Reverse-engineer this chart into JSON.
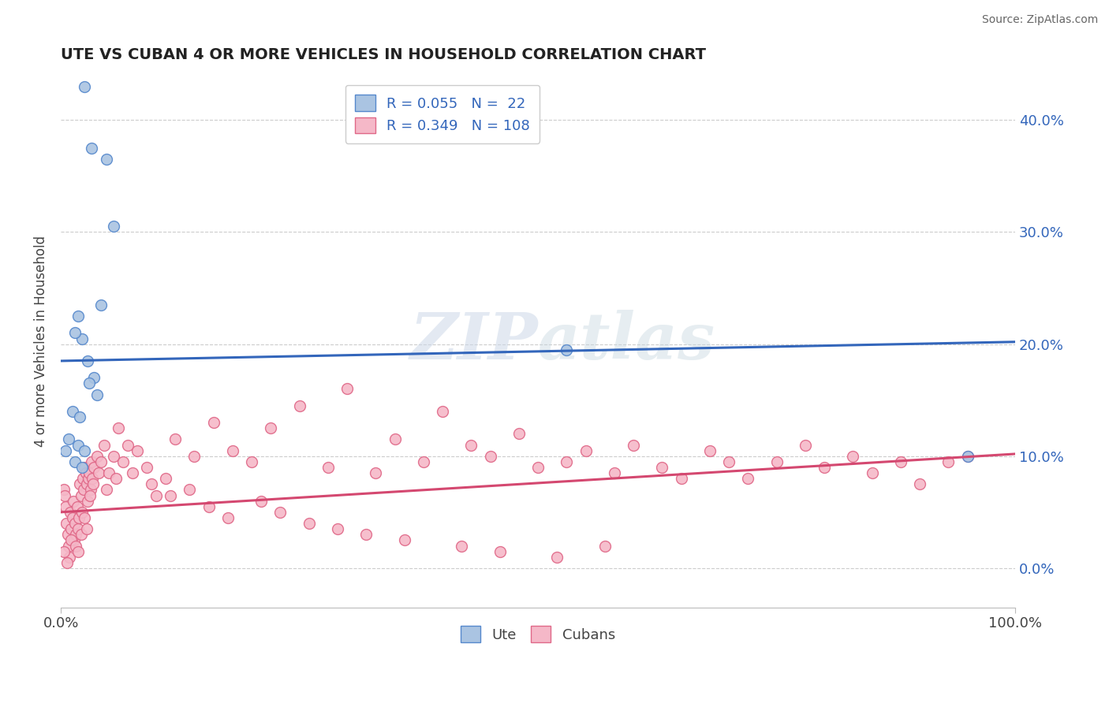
{
  "title": "UTE VS CUBAN 4 OR MORE VEHICLES IN HOUSEHOLD CORRELATION CHART",
  "source": "Source: ZipAtlas.com",
  "ylabel_label": "4 or more Vehicles in Household",
  "ytick_values": [
    0.0,
    10.0,
    20.0,
    30.0,
    40.0
  ],
  "xmin": 0.0,
  "xmax": 100.0,
  "ymin": -3.5,
  "ymax": 44.0,
  "ute_color": "#aac4e2",
  "ute_edge_color": "#5588cc",
  "ute_line_color": "#3366bb",
  "cuban_color": "#f5b8c8",
  "cuban_edge_color": "#e06888",
  "cuban_line_color": "#d44870",
  "legend_text_color": "#3366bb",
  "watermark": "ZIPatlas",
  "ute_scatter_x": [
    2.5,
    3.2,
    4.8,
    1.8,
    2.2,
    5.5,
    1.5,
    2.8,
    3.5,
    4.2,
    1.2,
    2.0,
    3.0,
    1.8,
    2.5,
    0.8,
    1.5,
    2.2,
    3.8,
    53.0,
    95.0,
    0.5
  ],
  "ute_scatter_y": [
    43.0,
    37.5,
    36.5,
    22.5,
    20.5,
    30.5,
    21.0,
    18.5,
    17.0,
    23.5,
    14.0,
    13.5,
    16.5,
    11.0,
    10.5,
    11.5,
    9.5,
    9.0,
    15.5,
    19.5,
    10.0,
    10.5
  ],
  "ute_line_x": [
    0.0,
    100.0
  ],
  "ute_line_y": [
    18.5,
    20.2
  ],
  "cuban_scatter_x": [
    0.3,
    0.4,
    0.5,
    0.6,
    0.7,
    0.8,
    0.9,
    1.0,
    1.1,
    1.2,
    1.3,
    1.4,
    1.5,
    1.6,
    1.7,
    1.8,
    1.9,
    2.0,
    2.1,
    2.2,
    2.3,
    2.4,
    2.5,
    2.6,
    2.7,
    2.8,
    2.9,
    3.0,
    3.1,
    3.2,
    3.3,
    3.5,
    3.8,
    4.0,
    4.2,
    4.5,
    5.0,
    5.5,
    6.0,
    6.5,
    7.0,
    8.0,
    9.0,
    10.0,
    11.0,
    12.0,
    14.0,
    16.0,
    18.0,
    20.0,
    22.0,
    25.0,
    28.0,
    30.0,
    33.0,
    35.0,
    38.0,
    40.0,
    43.0,
    45.0,
    48.0,
    50.0,
    53.0,
    55.0,
    58.0,
    60.0,
    63.0,
    65.0,
    68.0,
    70.0,
    72.0,
    75.0,
    78.0,
    80.0,
    83.0,
    85.0,
    88.0,
    90.0,
    93.0,
    95.0,
    0.35,
    0.65,
    1.05,
    1.55,
    1.85,
    2.15,
    2.45,
    2.75,
    3.05,
    3.35,
    4.8,
    5.8,
    7.5,
    9.5,
    11.5,
    13.5,
    15.5,
    17.5,
    21.0,
    23.0,
    26.0,
    29.0,
    32.0,
    36.0,
    42.0,
    46.0,
    52.0,
    57.0
  ],
  "cuban_scatter_y": [
    7.0,
    6.5,
    5.5,
    4.0,
    3.0,
    2.0,
    1.0,
    5.0,
    3.5,
    4.5,
    6.0,
    2.5,
    4.0,
    3.0,
    5.5,
    3.5,
    4.5,
    7.5,
    6.5,
    5.0,
    8.0,
    7.0,
    9.0,
    8.5,
    7.5,
    6.0,
    8.0,
    8.5,
    7.0,
    9.5,
    8.0,
    9.0,
    10.0,
    8.5,
    9.5,
    11.0,
    8.5,
    10.0,
    12.5,
    9.5,
    11.0,
    10.5,
    9.0,
    6.5,
    8.0,
    11.5,
    10.0,
    13.0,
    10.5,
    9.5,
    12.5,
    14.5,
    9.0,
    16.0,
    8.5,
    11.5,
    9.5,
    14.0,
    11.0,
    10.0,
    12.0,
    9.0,
    9.5,
    10.5,
    8.5,
    11.0,
    9.0,
    8.0,
    10.5,
    9.5,
    8.0,
    9.5,
    11.0,
    9.0,
    10.0,
    8.5,
    9.5,
    7.5,
    9.5,
    10.0,
    1.5,
    0.5,
    2.5,
    2.0,
    1.5,
    3.0,
    4.5,
    3.5,
    6.5,
    7.5,
    7.0,
    8.0,
    8.5,
    7.5,
    6.5,
    7.0,
    5.5,
    4.5,
    6.0,
    5.0,
    4.0,
    3.5,
    3.0,
    2.5,
    2.0,
    1.5,
    1.0,
    2.0
  ],
  "cuban_line_x": [
    0.0,
    100.0
  ],
  "cuban_line_y": [
    5.0,
    10.2
  ]
}
